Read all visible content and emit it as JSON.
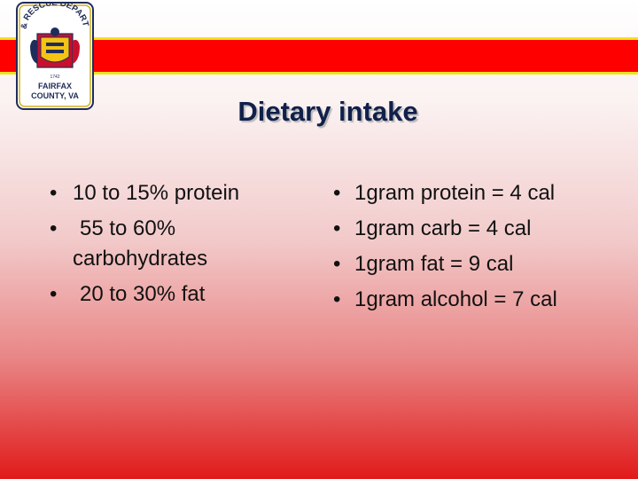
{
  "slide": {
    "title": "Dietary intake"
  },
  "logo": {
    "icon": "fire-rescue-badge-icon",
    "top_text": "FIRE & RESCUE DEPARTMENT",
    "bottom_text_1": "FAIRFAX",
    "bottom_text_2": "COUNTY, VA",
    "year": "1742"
  },
  "left_list": {
    "items": [
      {
        "bullet": "•",
        "text": "10 to 15% protein"
      },
      {
        "bullet": "•",
        "text": "55 to 60% carbohydrates"
      },
      {
        "bullet": "•",
        "text": "20 to 30% fat"
      }
    ]
  },
  "right_list": {
    "items": [
      {
        "bullet": "•",
        "text": "1gram protein = 4 cal"
      },
      {
        "bullet": "•",
        "text": "1gram carb = 4 cal"
      },
      {
        "bullet": "•",
        "text": "1gram fat = 9 cal"
      },
      {
        "bullet": "•",
        "text": "1gram alcohol = 7 cal"
      }
    ]
  },
  "colors": {
    "banner": "#ff0000",
    "banner_border": "#f3e21a",
    "title": "#10204a",
    "background_bottom": "#e11a1a"
  }
}
